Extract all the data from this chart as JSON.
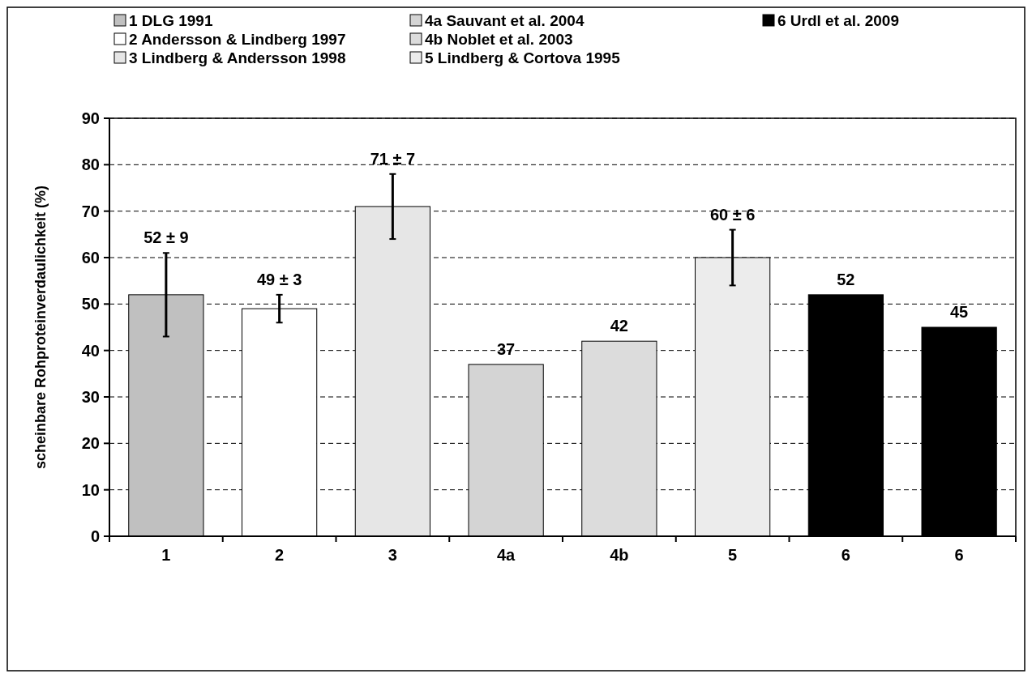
{
  "chart_data": {
    "type": "bar",
    "ylabel": "scheinbare Rohproteinverdaulichkeit (%)",
    "categories": [
      "1",
      "2",
      "3",
      "4a",
      "4b",
      "5",
      "6",
      "6"
    ],
    "series": [
      {
        "name": "1 DLG 1991",
        "color": "#c0c0c0",
        "values": [
          52,
          null,
          null,
          null,
          null,
          null,
          null,
          null
        ],
        "errors": [
          9,
          null,
          null,
          null,
          null,
          null,
          null,
          null
        ],
        "value_labels": [
          "52 ± 9",
          null,
          null,
          null,
          null,
          null,
          null,
          null
        ]
      },
      {
        "name": "2 Andersson & Lindberg 1997",
        "color": "#ffffff",
        "values": [
          null,
          49,
          null,
          null,
          null,
          null,
          null,
          null
        ],
        "errors": [
          null,
          3,
          null,
          null,
          null,
          null,
          null,
          null
        ],
        "value_labels": [
          null,
          "49 ± 3",
          null,
          null,
          null,
          null,
          null,
          null
        ]
      },
      {
        "name": "3 Lindberg & Andersson 1998",
        "color": "#e6e6e6",
        "values": [
          null,
          null,
          71,
          null,
          null,
          null,
          null,
          null
        ],
        "errors": [
          null,
          null,
          7,
          null,
          null,
          null,
          null,
          null
        ],
        "value_labels": [
          null,
          null,
          "71 ± 7",
          null,
          null,
          null,
          null,
          null
        ]
      },
      {
        "name": "4a Sauvant et al. 2004",
        "color": "#d4d4d4",
        "values": [
          null,
          null,
          null,
          37,
          null,
          null,
          null,
          null
        ],
        "value_labels": [
          null,
          null,
          null,
          "37",
          null,
          null,
          null,
          null
        ]
      },
      {
        "name": "4b Noblet et al. 2003",
        "color": "#dcdcdc",
        "values": [
          null,
          null,
          null,
          null,
          42,
          null,
          null,
          null
        ],
        "value_labels": [
          null,
          null,
          null,
          null,
          "42",
          null,
          null,
          null
        ]
      },
      {
        "name": "5 Lindberg & Cortova 1995",
        "color": "#ececec",
        "values": [
          null,
          null,
          null,
          null,
          null,
          60,
          null,
          null
        ],
        "errors": [
          null,
          null,
          null,
          null,
          null,
          6,
          null,
          null
        ],
        "value_labels": [
          null,
          null,
          null,
          null,
          null,
          "60 ± 6",
          null,
          null
        ]
      },
      {
        "name": "6 Urdl et al. 2009",
        "color": "#000000",
        "values": [
          null,
          null,
          null,
          null,
          null,
          null,
          52,
          45
        ],
        "value_labels": [
          null,
          null,
          null,
          null,
          null,
          null,
          "52",
          "45"
        ]
      }
    ],
    "ylim": [
      0,
      90
    ],
    "yticks": [
      0,
      10,
      20,
      30,
      40,
      50,
      60,
      70,
      80,
      90
    ],
    "grid": "y",
    "legend": "top"
  }
}
